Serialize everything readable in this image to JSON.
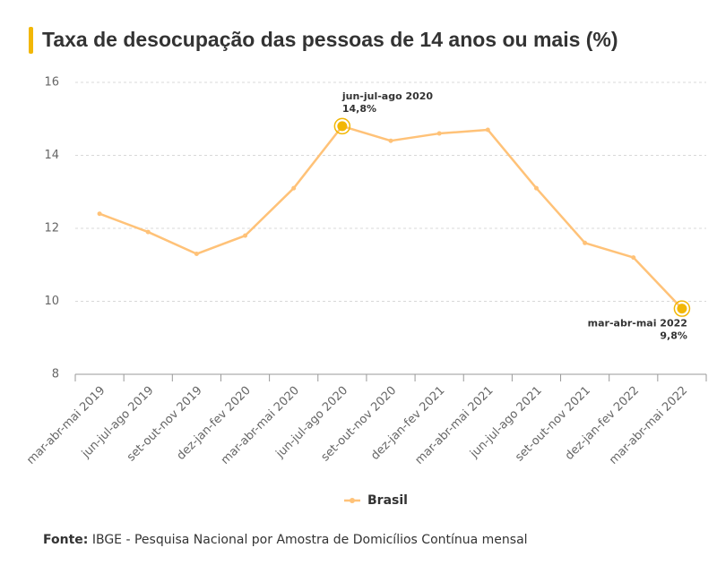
{
  "chart_data": {
    "type": "line",
    "title": "Taxa de desocupação das pessoas de 14 anos ou mais (%)",
    "categories": [
      "mar-abr-mai 2019",
      "jun-jul-ago 2019",
      "set-out-nov 2019",
      "dez-jan-fev 2020",
      "mar-abr-mai 2020",
      "jun-jul-ago 2020",
      "set-out-nov 2020",
      "dez-jan-fev 2021",
      "mar-abr-mai 2021",
      "jun-jul-ago 2021",
      "set-out-nov 2021",
      "dez-jan-fev 2022",
      "mar-abr-mai 2022"
    ],
    "series": [
      {
        "name": "Brasil",
        "color": "#ffc278",
        "values": [
          12.4,
          11.9,
          11.3,
          11.8,
          13.1,
          14.8,
          14.4,
          14.6,
          14.7,
          13.1,
          11.6,
          11.2,
          9.8
        ]
      }
    ],
    "ylim": [
      8,
      16
    ],
    "yticks": [
      8,
      10,
      12,
      14,
      16
    ],
    "grid": true,
    "annotations": [
      {
        "category": "jun-jul-ago 2020",
        "value": 14.8,
        "label": "14,8%"
      },
      {
        "category": "mar-abr-mai 2022",
        "value": 9.8,
        "label": "9,8%"
      }
    ],
    "highlight_color": "#f2b705",
    "source": {
      "label": "Fonte:",
      "text": "IBGE - Pesquisa Nacional por Amostra de Domicílios Contínua mensal"
    }
  }
}
